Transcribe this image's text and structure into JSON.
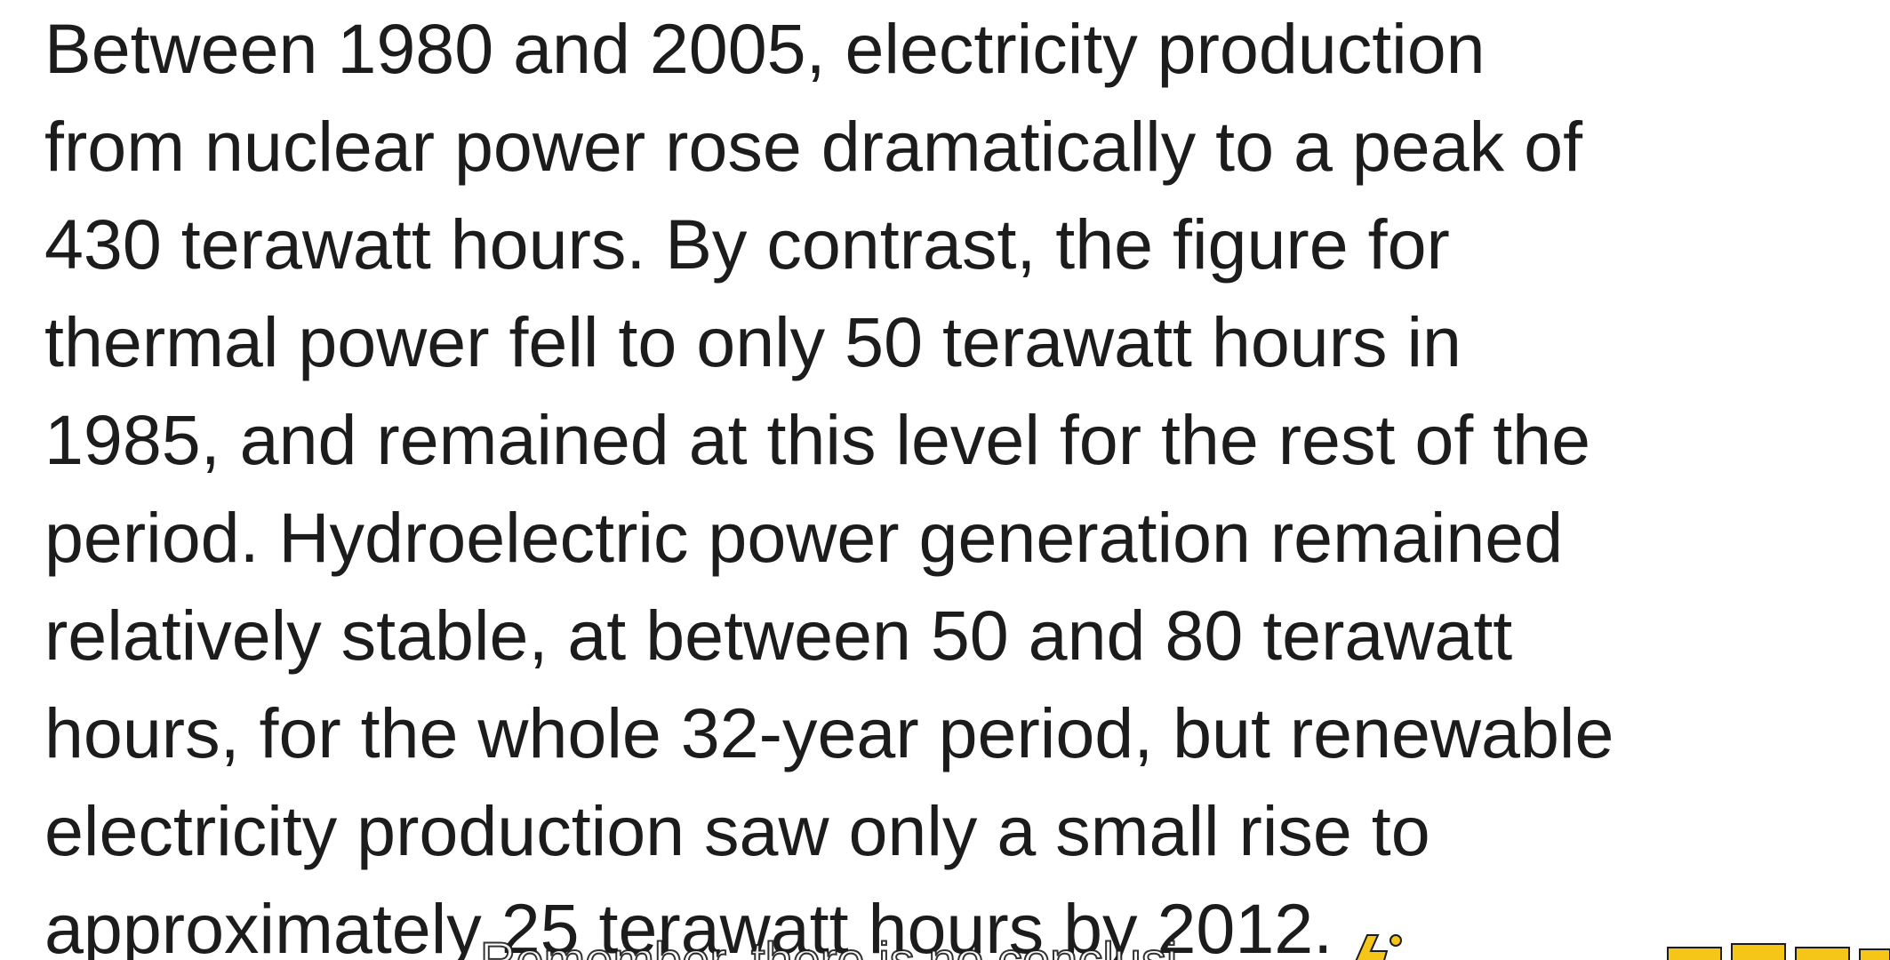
{
  "paragraph": {
    "lines": [
      "Between 1980 and 2005, electricity production",
      "from nuclear power rose dramatically to a peak of",
      "430 terawatt hours. By contrast, the figure for",
      "thermal power fell to only 50 terawatt hours in",
      "1985, and remained at this level for the rest of the",
      "period. Hydroelectric power generation remained",
      "relatively stable, at between 50 and 80 terawatt",
      "hours, for the whole 32-year period, but renewable",
      "electricity production saw only a small rise to",
      "approximately 25 terawatt hours by 2012."
    ]
  },
  "subtitle": "Remember, there is no conclusi",
  "colors": {
    "text": "#1c1c1c",
    "background": "#ffffff",
    "logo_accent": "#f5c518"
  }
}
